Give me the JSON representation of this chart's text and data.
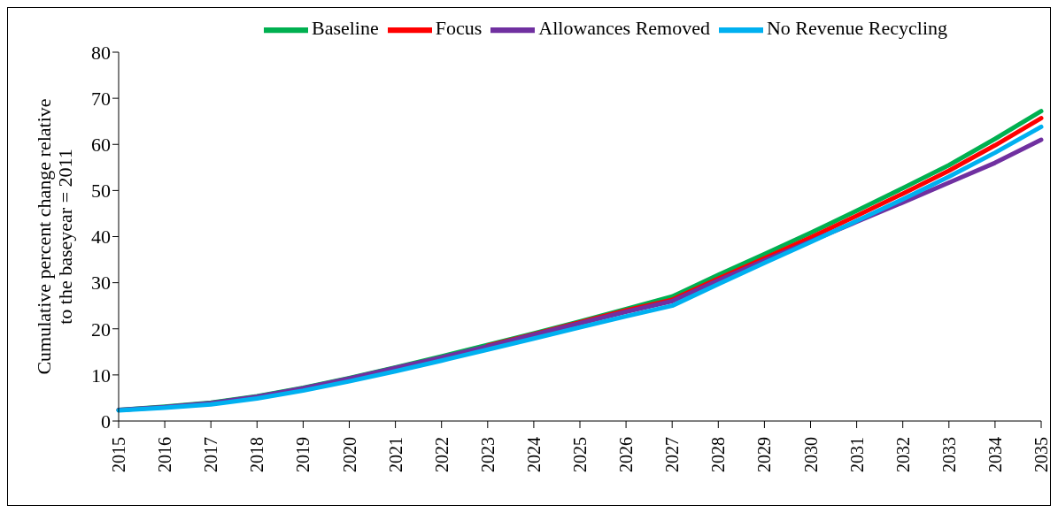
{
  "chart_data": {
    "type": "line",
    "ylabel": "Cumulative percent change relative to the baseyear = 2011",
    "categories": [
      "2015",
      "2016",
      "2017",
      "2018",
      "2019",
      "2020",
      "2021",
      "2022",
      "2023",
      "2024",
      "2025",
      "2026",
      "2027",
      "2028",
      "2029",
      "2030",
      "2031",
      "2032",
      "2033",
      "2034",
      "2035"
    ],
    "series": [
      {
        "name": "Baseline",
        "color": "#00b050",
        "values": [
          2.4,
          3.1,
          4.0,
          5.4,
          7.2,
          9.3,
          11.6,
          14.0,
          16.5,
          19.0,
          21.6,
          24.3,
          27.0,
          31.7,
          36.2,
          40.8,
          45.6,
          50.5,
          55.5,
          61.2,
          67.2
        ]
      },
      {
        "name": "Focus",
        "color": "#ff0000",
        "values": [
          null,
          null,
          null,
          null,
          null,
          null,
          null,
          null,
          16.3,
          18.8,
          21.4,
          24.0,
          26.3,
          30.9,
          35.3,
          39.8,
          44.5,
          49.3,
          54.3,
          59.8,
          65.7
        ]
      },
      {
        "name": "Allowances Removed",
        "color": "#7030a0",
        "values": [
          2.4,
          3.0,
          3.9,
          5.3,
          7.1,
          9.2,
          11.5,
          13.8,
          16.2,
          18.7,
          21.2,
          23.7,
          26.0,
          30.5,
          34.8,
          39.0,
          43.2,
          47.4,
          51.7,
          56.0,
          61.0
        ]
      },
      {
        "name": "No Revenue Recycling",
        "color": "#00b0f0",
        "values": [
          2.3,
          2.9,
          3.6,
          4.9,
          6.6,
          8.6,
          10.8,
          13.1,
          15.5,
          17.9,
          20.3,
          22.7,
          25.0,
          29.7,
          34.3,
          38.8,
          43.4,
          48.1,
          53.0,
          58.2,
          63.8
        ]
      }
    ],
    "ylim": [
      0,
      80
    ],
    "yticks": [
      0,
      10,
      20,
      30,
      40,
      50,
      60,
      70,
      80
    ],
    "grid": false,
    "legend": "top",
    "marker": "none",
    "line_style": "solid"
  }
}
